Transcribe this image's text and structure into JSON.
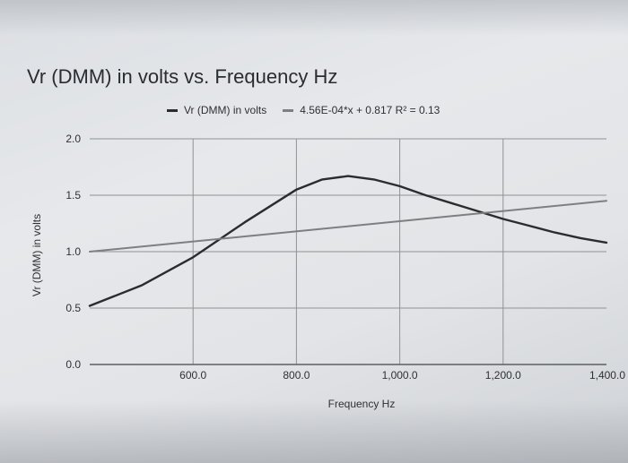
{
  "chart_data": {
    "type": "line",
    "title": "Vr (DMM) in volts vs. Frequency Hz",
    "xlabel": "Frequency Hz",
    "ylabel": "Vr (DMM) in volts",
    "xlim": [
      400,
      1400
    ],
    "ylim": [
      0,
      2.0
    ],
    "x_ticks": [
      600,
      800,
      1000,
      1200,
      1400
    ],
    "x_tick_labels": [
      "600.0",
      "800.0",
      "1,000.0",
      "1,200.0",
      "1,400.0"
    ],
    "y_ticks": [
      0,
      0.5,
      1.0,
      1.5,
      2.0
    ],
    "y_tick_labels": [
      "0.0",
      "0.5",
      "1.0",
      "1.5",
      "2.0"
    ],
    "grid": true,
    "legend_position": "top-center",
    "series": [
      {
        "name": "Vr (DMM) in volts",
        "color": "#2b2c2e",
        "x": [
          400,
          500,
          600,
          700,
          800,
          850,
          900,
          950,
          1000,
          1050,
          1100,
          1150,
          1200,
          1250,
          1300,
          1350,
          1400
        ],
        "y": [
          0.52,
          0.7,
          0.95,
          1.26,
          1.55,
          1.64,
          1.67,
          1.64,
          1.58,
          1.5,
          1.43,
          1.36,
          1.29,
          1.23,
          1.17,
          1.12,
          1.08
        ]
      },
      {
        "name": "4.56E-04*x + 0.817 R² = 0.13",
        "color": "#7d7f83",
        "x": [
          400,
          1400
        ],
        "y": [
          1.0,
          1.45
        ]
      }
    ]
  }
}
